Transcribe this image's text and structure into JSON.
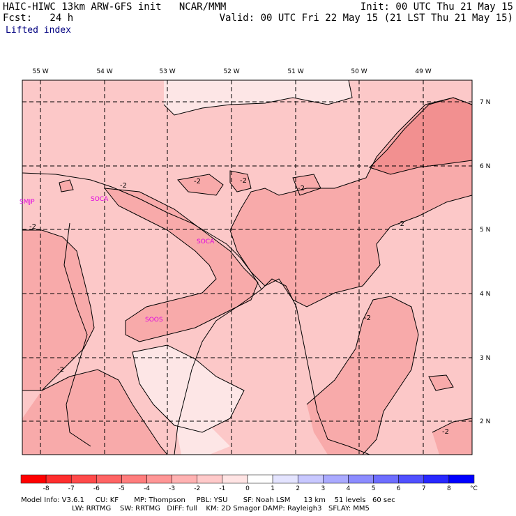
{
  "header": {
    "model_line": "HAIC-HIWC 13km ARW-GFS init   NCAR/MMM",
    "fcst_line": "Fcst:   24 h",
    "init_line": "Init: 00 UTC Thu 21 May 15",
    "valid_line": "Valid: 00 UTC Fri 22 May 15 (21 LST Thu 21 May 15)",
    "field_name": "Lifted index"
  },
  "map": {
    "lon_labels": [
      "55 W",
      "54 W",
      "53 W",
      "52 W",
      "51 W",
      "50 W",
      "49 W"
    ],
    "lat_labels": [
      "7 N",
      "6 N",
      "5 N",
      "4 N",
      "3 N",
      "2 N"
    ],
    "stations": [
      "SMJP",
      "SOCA",
      "SOCA",
      "SOOS"
    ],
    "contour_label": "-2"
  },
  "colorbar": {
    "ticks": [
      "-8",
      "-7",
      "-6",
      "-5",
      "-4",
      "-3",
      "-2",
      "-1",
      "0",
      "1",
      "2",
      "3",
      "4",
      "5",
      "6",
      "7",
      "8"
    ],
    "unit": "°C",
    "colors": [
      "#ff0000",
      "#ff2e2e",
      "#ff4a4a",
      "#ff6464",
      "#ff7d7d",
      "#ff9696",
      "#ffb2b2",
      "#ffcaca",
      "#ffe4e4",
      "#e4e4ff",
      "#c8c8ff",
      "#aaaaff",
      "#8c8cff",
      "#6e6eff",
      "#5050ff",
      "#2828ff",
      "#0000ff"
    ]
  },
  "fill_colors": {
    "lightest": "#fde6e6",
    "light": "#fcc8c8",
    "medium": "#f8aaaa",
    "dark": "#f29090"
  },
  "model_info": {
    "line1": "Model Info: V3.6.1     CU: KF       MP: Thompson     PBL: YSU       SF: Noah LSM      13 km    51 levels   60 sec",
    "line2": "                       LW: RRTMG    SW: RRTMG   DIFF: full    KM: 2D Smagor DAMP: Rayleigh3   SFLAY: MM5"
  }
}
